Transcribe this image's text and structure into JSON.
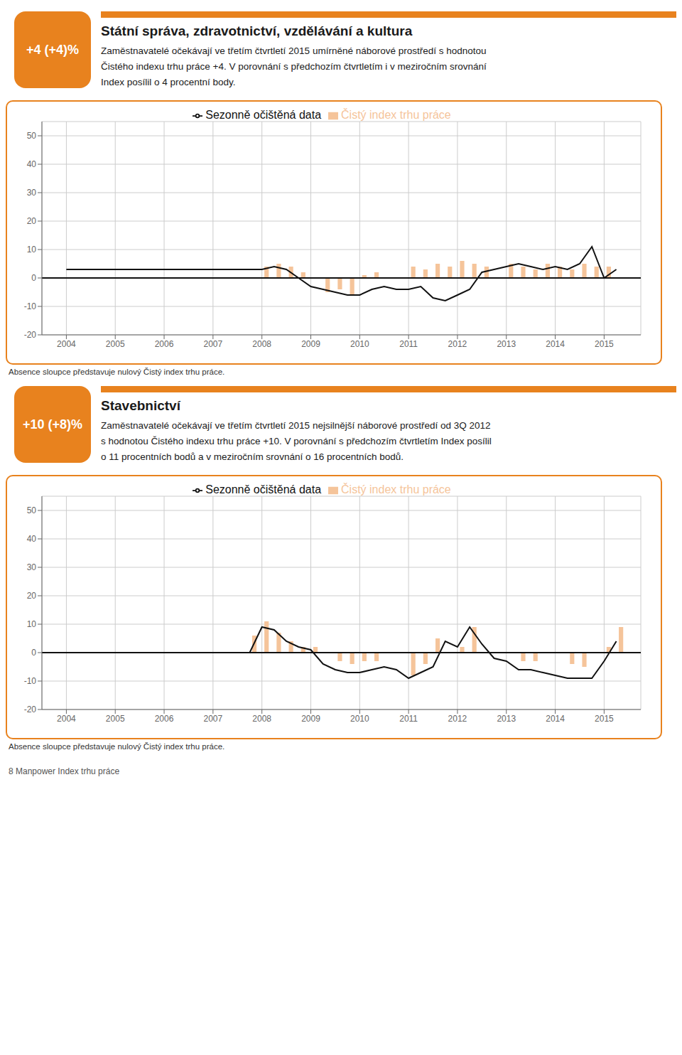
{
  "chart_data": [
    {
      "type": "bar",
      "title": "Státní správa, zdravotnictví, vzdělávání a kultura",
      "subtitle": [
        "Zaměstnavatelé očekávají ve třetím čtvrtletí 2015 umírněné náborové prostředí s hodnotou",
        "Čistého indexu trhu práce +4. V porovnání s předchozím čtvrtletím i v meziročním srovnání",
        "Index posílil o 4 procentní body."
      ],
      "annotations": [
        "+4 (+4)%",
        "Absence sloupce představuje nulový Čistý index trhu práce."
      ],
      "xlim": [
        2003.5,
        2015.75
      ],
      "xticks": [
        2004,
        2005,
        2006,
        2007,
        2008,
        2009,
        2010,
        2011,
        2012,
        2013,
        2014,
        2015
      ],
      "ylim": [
        -20,
        55
      ],
      "yticks": [
        -20,
        -10,
        0,
        10,
        20,
        30,
        40,
        50
      ],
      "grid": true,
      "legend": "top",
      "series": [
        {
          "name": "Čistý index trhu práce",
          "type": "bar",
          "color": "#F5C49A",
          "x": [
            2008.1,
            2008.35,
            2008.6,
            2008.85,
            2009.35,
            2009.6,
            2009.85,
            2010.1,
            2010.35,
            2011.1,
            2011.35,
            2011.6,
            2011.85,
            2012.1,
            2012.35,
            2012.6,
            2013.1,
            2013.35,
            2013.6,
            2013.85,
            2014.1,
            2014.35,
            2014.6,
            2014.85,
            2015.1
          ],
          "values": [
            4,
            5,
            4,
            2,
            -5,
            -4,
            -6,
            1,
            2,
            4,
            3,
            5,
            4,
            6,
            5,
            4,
            5,
            4,
            3,
            5,
            4,
            3,
            5,
            4,
            4
          ]
        },
        {
          "name": "Sezonně očištěná data",
          "type": "line",
          "color": "#111111",
          "x": [
            2004.0,
            2004.25,
            2004.5,
            2004.75,
            2005.0,
            2005.25,
            2005.5,
            2005.75,
            2006.0,
            2006.25,
            2006.5,
            2006.75,
            2007.0,
            2007.25,
            2007.5,
            2007.75,
            2008.0,
            2008.25,
            2008.5,
            2008.75,
            2009.0,
            2009.25,
            2009.5,
            2009.75,
            2010.0,
            2010.25,
            2010.5,
            2010.75,
            2011.0,
            2011.25,
            2011.5,
            2011.75,
            2012.0,
            2012.25,
            2012.5,
            2012.75,
            2013.0,
            2013.25,
            2013.5,
            2013.75,
            2014.0,
            2014.25,
            2014.5,
            2014.75,
            2015.0,
            2015.25
          ],
          "values": [
            3,
            3,
            3,
            3,
            3,
            3,
            3,
            3,
            3,
            3,
            3,
            3,
            3,
            3,
            3,
            3,
            3,
            4,
            3,
            0,
            -3,
            -4,
            -5,
            -6,
            -6,
            -4,
            -3,
            -4,
            -4,
            -3,
            -7,
            -8,
            -6,
            -4,
            2,
            3,
            4,
            5,
            4,
            3,
            4,
            3,
            5,
            11,
            0,
            3
          ]
        }
      ]
    },
    {
      "type": "bar",
      "title": "Stavebnictví",
      "subtitle": [
        "Zaměstnavatelé očekávají ve třetím čtvrtletí 2015 nejsilnější náborové prostředí od 3Q 2012",
        "s hodnotou Čistého indexu trhu práce +10. V porovnání s předchozím čtvrtletím Index posílil",
        "o 11 procentních bodů a v meziročním srovnání o 16 procentních bodů."
      ],
      "annotations": [
        "+10 (+8)%",
        "Absence sloupce představuje nulový Čistý index trhu práce.",
        "8    Manpower Index trhu práce"
      ],
      "xlim": [
        2003.5,
        2015.75
      ],
      "xticks": [
        2004,
        2005,
        2006,
        2007,
        2008,
        2009,
        2010,
        2011,
        2012,
        2013,
        2014,
        2015
      ],
      "ylim": [
        -20,
        55
      ],
      "yticks": [
        -20,
        -10,
        0,
        10,
        20,
        30,
        40,
        50
      ],
      "grid": true,
      "legend": "top",
      "series": [
        {
          "name": "Čistý index trhu práce",
          "type": "bar",
          "color": "#F5C49A",
          "x": [
            2007.85,
            2008.1,
            2008.35,
            2008.6,
            2008.85,
            2009.1,
            2009.6,
            2009.85,
            2010.1,
            2010.35,
            2011.1,
            2011.35,
            2011.6,
            2012.1,
            2012.35,
            2013.35,
            2013.6,
            2014.35,
            2014.6,
            2015.1,
            2015.35
          ],
          "values": [
            6,
            11,
            7,
            4,
            2,
            2,
            -3,
            -4,
            -3,
            -3,
            -8,
            -4,
            5,
            2,
            9,
            -3,
            -3,
            -4,
            -5,
            2,
            9
          ]
        },
        {
          "name": "Sezonně očištěná data",
          "type": "line",
          "color": "#111111",
          "x": [
            2004.0,
            2004.25,
            2004.5,
            2004.75,
            2005.0,
            2005.25,
            2005.5,
            2005.75,
            2006.0,
            2006.25,
            2006.5,
            2006.75,
            2007.0,
            2007.25,
            2007.5,
            2007.75,
            2008.0,
            2008.25,
            2008.5,
            2008.75,
            2009.0,
            2009.25,
            2009.5,
            2009.75,
            2010.0,
            2010.25,
            2010.5,
            2010.75,
            2011.0,
            2011.25,
            2011.5,
            2011.75,
            2012.0,
            2012.25,
            2012.5,
            2012.75,
            2013.0,
            2013.25,
            2013.5,
            2013.75,
            2014.0,
            2014.25,
            2014.5,
            2014.75,
            2015.0,
            2015.25
          ],
          "values": [
            0,
            0,
            0,
            0,
            0,
            0,
            0,
            0,
            0,
            0,
            0,
            0,
            0,
            0,
            0,
            0,
            9,
            8,
            4,
            2,
            1,
            -4,
            -6,
            -7,
            -7,
            -6,
            -5,
            -6,
            -9,
            -7,
            -5,
            4,
            2,
            9,
            3,
            -2,
            -3,
            -6,
            -6,
            -7,
            -8,
            -9,
            -9,
            -9,
            -3,
            4
          ]
        }
      ]
    }
  ]
}
